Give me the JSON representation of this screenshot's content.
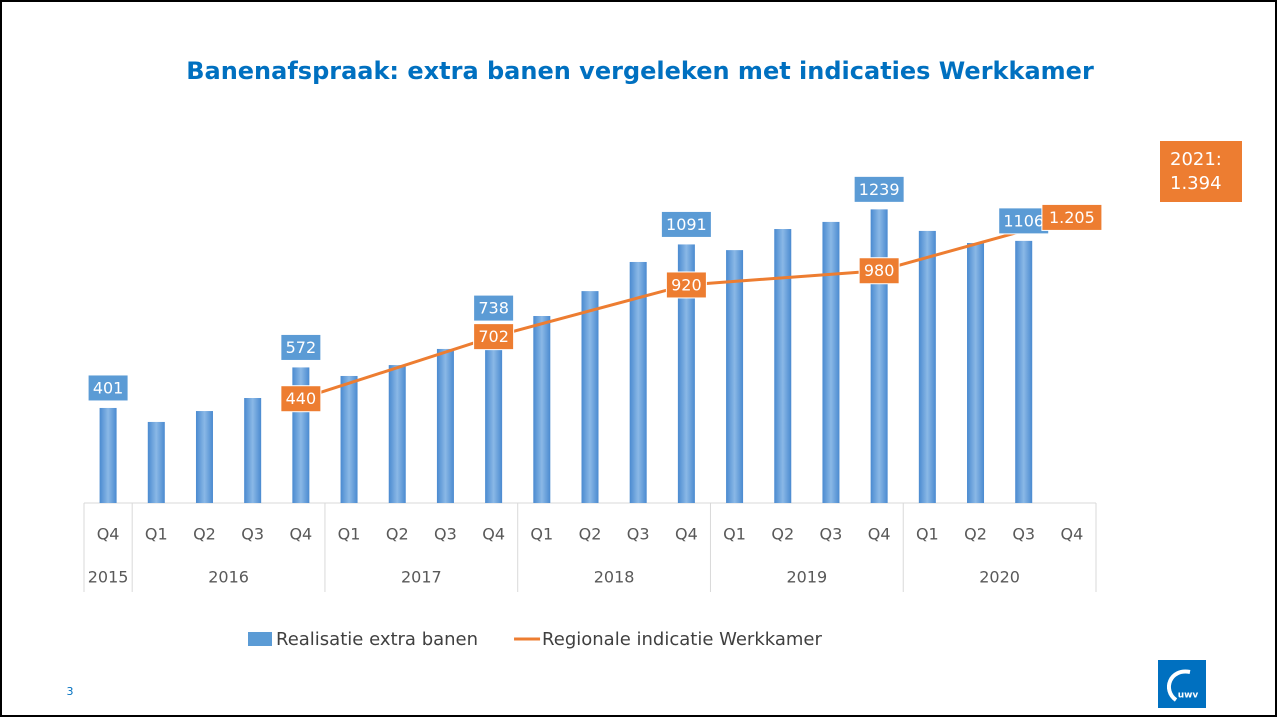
{
  "chart_data": {
    "type": "bar_line",
    "title": "Banenafspraak: extra banen vergeleken met indicaties Werkkamer",
    "categories": [
      "Q4",
      "Q1",
      "Q2",
      "Q3",
      "Q4",
      "Q1",
      "Q2",
      "Q3",
      "Q4",
      "Q1",
      "Q2",
      "Q3",
      "Q4",
      "Q1",
      "Q2",
      "Q3",
      "Q4",
      "Q1",
      "Q2",
      "Q3",
      "Q4"
    ],
    "groups": [
      {
        "label": "2015",
        "span": 1
      },
      {
        "label": "2016",
        "span": 4
      },
      {
        "label": "2017",
        "span": 4
      },
      {
        "label": "2018",
        "span": 4
      },
      {
        "label": "2019",
        "span": 4
      },
      {
        "label": "2020",
        "span": 4
      }
    ],
    "series": [
      {
        "name": "Realisatie extra banen",
        "type": "bar",
        "color": "#5b9bd5",
        "values": [
          401,
          342,
          388,
          443,
          572,
          536,
          582,
          650,
          738,
          789,
          894,
          1017,
          1091,
          1067,
          1156,
          1186,
          1239,
          1148,
          1097,
          1106,
          null
        ],
        "value_labels": [
          "401",
          null,
          null,
          null,
          "572",
          null,
          null,
          null,
          "738",
          null,
          null,
          null,
          "1091",
          null,
          null,
          null,
          "1239",
          null,
          null,
          "1106",
          null
        ]
      },
      {
        "name": "Regionale indicatie Werkkamer",
        "type": "line",
        "color": "#ed7d31",
        "connect_gaps": true,
        "values": [
          null,
          null,
          null,
          null,
          440,
          null,
          null,
          null,
          702,
          null,
          null,
          null,
          920,
          null,
          null,
          null,
          980,
          null,
          null,
          null,
          1205
        ],
        "value_labels": [
          null,
          null,
          null,
          null,
          "440",
          null,
          null,
          null,
          "702",
          null,
          null,
          null,
          "920",
          null,
          null,
          null,
          "980",
          null,
          null,
          null,
          "1.205"
        ]
      }
    ],
    "ylim": [
      0,
      1400
    ],
    "legend": "bottom",
    "annotation": [
      "2021:",
      "1.394"
    ]
  },
  "page_number": "3",
  "logo": "uwv"
}
